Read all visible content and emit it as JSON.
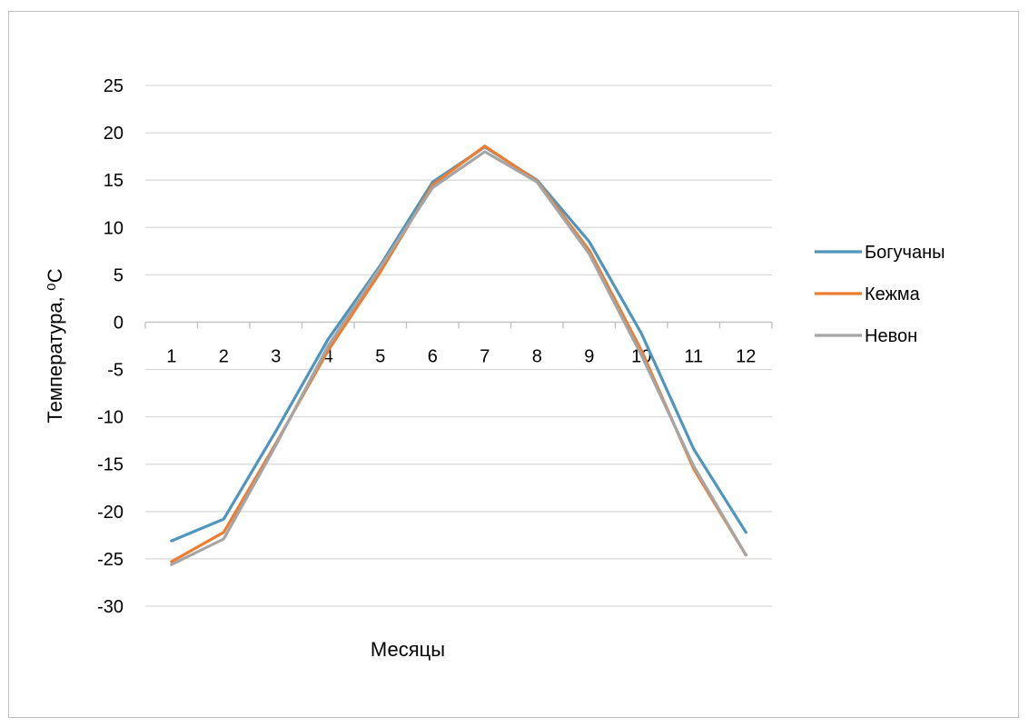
{
  "chart_data": {
    "type": "line",
    "title": "",
    "xlabel": "Месяцы",
    "ylabel": "Температура, ⁰С",
    "categories": [
      "1",
      "2",
      "3",
      "4",
      "5",
      "6",
      "7",
      "8",
      "9",
      "10",
      "11",
      "12"
    ],
    "ylim": [
      -30,
      25
    ],
    "ytick_step": 5,
    "yticks": [
      "25",
      "20",
      "15",
      "10",
      "5",
      "0",
      "-5",
      "-10",
      "-15",
      "-20",
      "-25",
      "-30"
    ],
    "grid": true,
    "legend_position": "right",
    "series": [
      {
        "name": "Богучаны",
        "color": "#4f95bd",
        "values": [
          -23.1,
          -20.8,
          -11.5,
          -1.8,
          6.0,
          14.8,
          18.5,
          15.0,
          8.5,
          -1.2,
          -13.4,
          -22.2
        ]
      },
      {
        "name": "Кежма",
        "color": "#ed7d31",
        "values": [
          -25.3,
          -22.2,
          -12.8,
          -3.0,
          5.3,
          14.5,
          18.6,
          14.9,
          7.6,
          -3.0,
          -15.5,
          -24.6
        ]
      },
      {
        "name": "Невон",
        "color": "#a5a5a5",
        "values": [
          -25.6,
          -22.9,
          -13.0,
          -2.5,
          5.8,
          14.2,
          18.0,
          14.8,
          7.2,
          -3.5,
          -15.2,
          -24.6
        ]
      }
    ]
  }
}
